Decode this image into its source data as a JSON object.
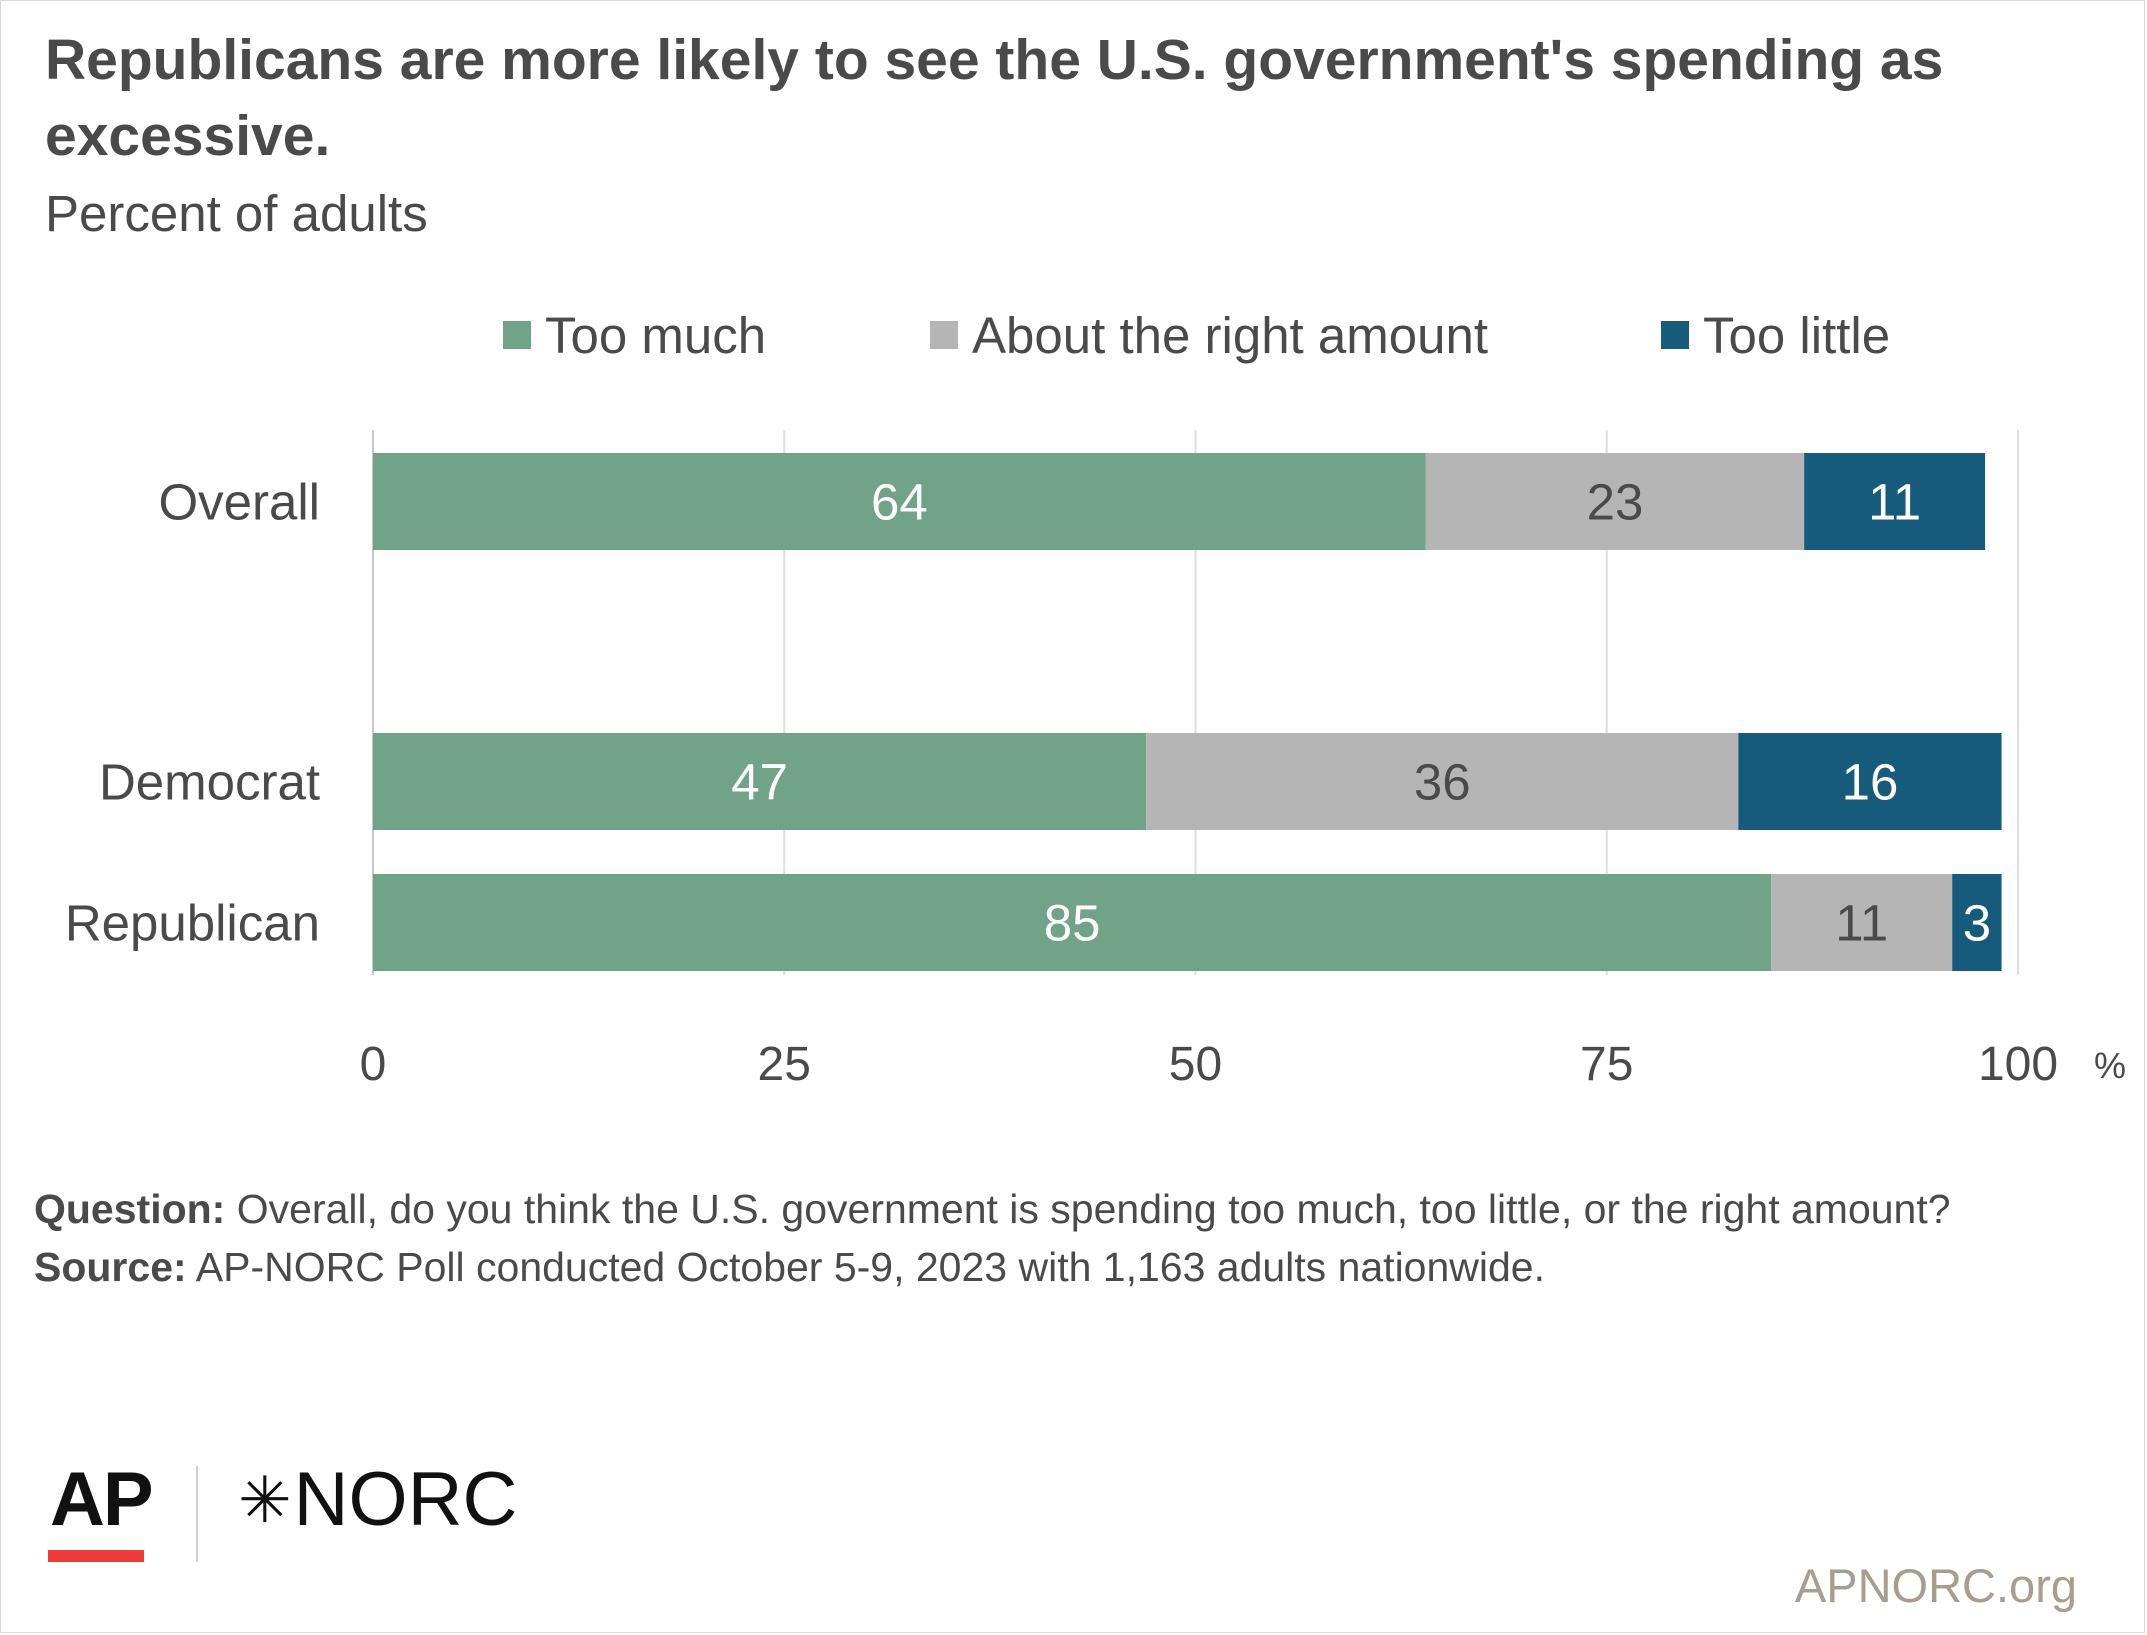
{
  "chart_data": {
    "type": "bar",
    "orientation": "horizontal",
    "stacked": true,
    "title": "Republicans are more likely to see the U.S. government's spending as excessive.",
    "subtitle": "Percent of adults",
    "categories": [
      "Overall",
      "Democrat",
      "Republican"
    ],
    "series": [
      {
        "name": "Too much",
        "color": "#71a388",
        "values": [
          64,
          47,
          85
        ]
      },
      {
        "name": "About the right amount",
        "color": "#b5b5b5",
        "values": [
          23,
          36,
          11
        ]
      },
      {
        "name": "Too little",
        "color": "#165b7b",
        "values": [
          11,
          16,
          3
        ]
      }
    ],
    "xlim": [
      0,
      100
    ],
    "xticks": [
      "0",
      "25",
      "50",
      "75",
      "100"
    ],
    "x_unit": "%",
    "grid": true,
    "legend": "top"
  },
  "footnote": {
    "question_label": "Question:",
    "question_text": "Overall, do you think the U.S. government is spending too much, too little, or the right amount?",
    "source_label": "Source:",
    "source_text": "AP-NORC Poll conducted October 5-9, 2023 with 1,163 adults nationwide."
  },
  "logos": {
    "ap": "AP",
    "norc": "NORC",
    "norc_mark": "star-icon",
    "site": "APNORC.org"
  }
}
